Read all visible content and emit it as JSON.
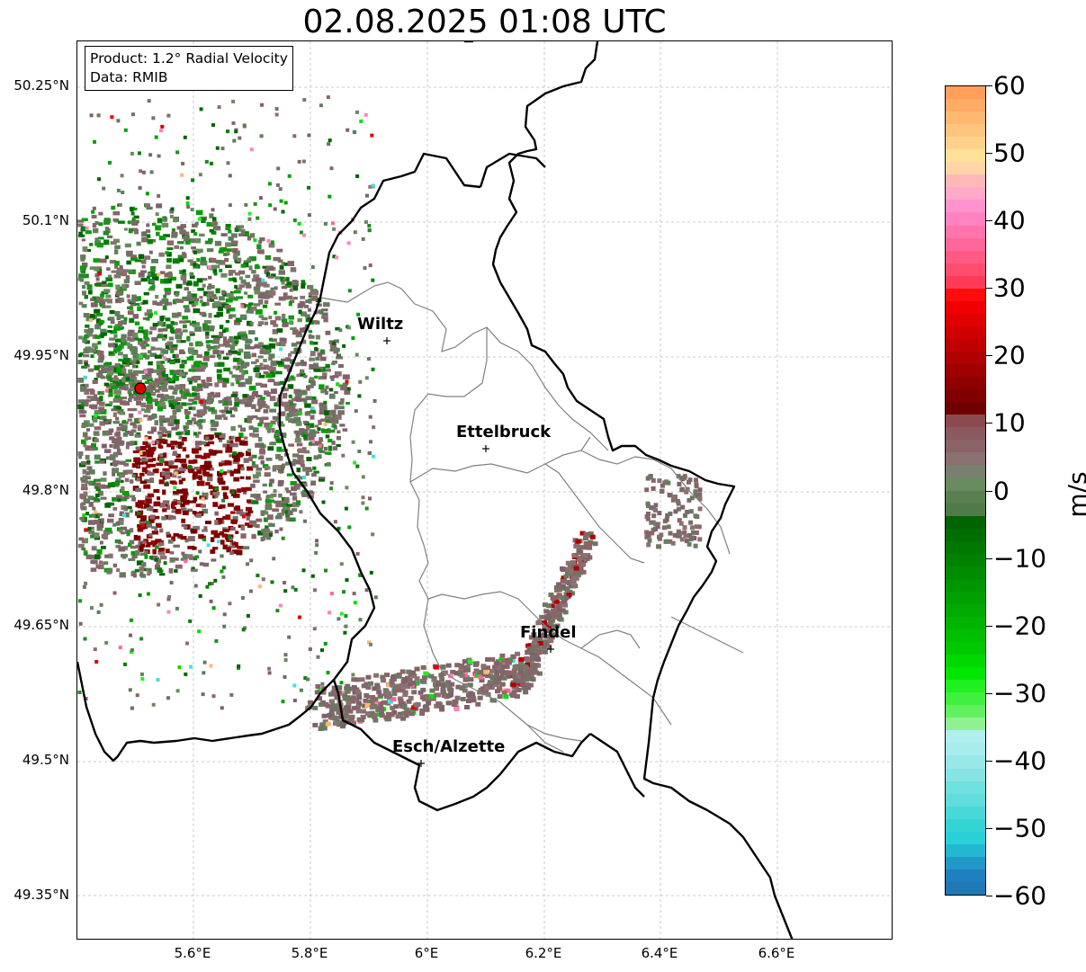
{
  "title": "02.08.2025 01:08 UTC",
  "info_box": {
    "product": "Product: 1.2° Radial Velocity",
    "data_source": "Data: RMIB"
  },
  "axes": {
    "lat_ticks": [
      "50.25°N",
      "50.1°N",
      "49.95°N",
      "49.8°N",
      "49.65°N",
      "49.5°N",
      "49.35°N"
    ],
    "lon_ticks": [
      "5.6°E",
      "5.8°E",
      "6°E",
      "6.2°E",
      "6.4°E",
      "6.6°E"
    ]
  },
  "cities": [
    {
      "name": "Wiltz"
    },
    {
      "name": "Ettelbruck"
    },
    {
      "name": "Findel"
    },
    {
      "name": "Esch/Alzette"
    }
  ],
  "colorbar": {
    "unit": "m/s",
    "ticks": [
      "60",
      "50",
      "40",
      "30",
      "20",
      "10",
      "0",
      "−10",
      "−20",
      "−30",
      "−40",
      "−50",
      "−60"
    ],
    "range": [
      -60,
      60
    ]
  },
  "colors": {
    "radar_site": "#e00000",
    "border": "#000000",
    "district_lines": "#808080",
    "grid": "#bbbbbb"
  }
}
